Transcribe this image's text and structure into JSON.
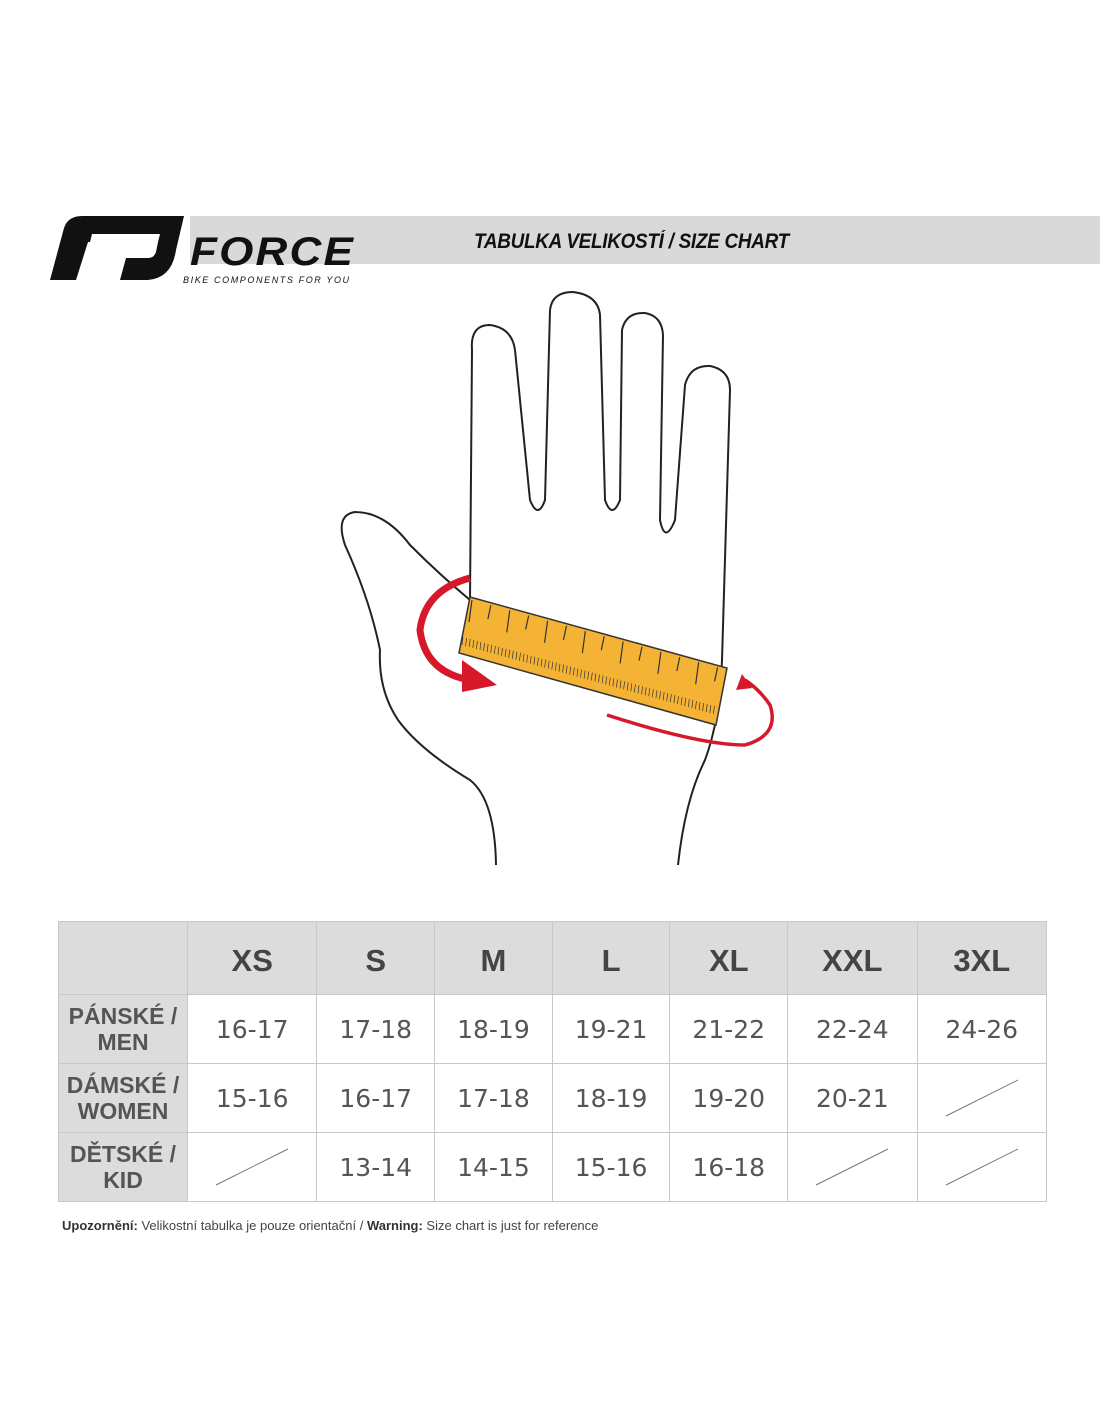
{
  "header": {
    "brand": "FORCE",
    "tagline": "BIKE COMPONENTS FOR YOU",
    "title": "TABULKA VELIKOSTÍ / SIZE CHART"
  },
  "colors": {
    "band": "#d9d9d9",
    "ruler": "#f5b335",
    "arrow": "#d7182a"
  },
  "table": {
    "columns": [
      "XS",
      "S",
      "M",
      "L",
      "XL",
      "XXL",
      "3XL"
    ],
    "rows": [
      {
        "label": "PÁNSKÉ / MEN",
        "values": [
          "16-17",
          "17-18",
          "18-19",
          "19-21",
          "21-22",
          "22-24",
          "24-26"
        ]
      },
      {
        "label": "DÁMSKÉ / WOMEN",
        "values": [
          "15-16",
          "16-17",
          "17-18",
          "18-19",
          "19-20",
          "20-21",
          null
        ]
      },
      {
        "label": "DĚTSKÉ / KID",
        "values": [
          null,
          "13-14",
          "14-15",
          "15-16",
          "16-18",
          null,
          null
        ]
      }
    ]
  },
  "footer": {
    "warning_cz_label": "Upozornění:",
    "warning_cz": "Velikostní tabulka je pouze orientační /",
    "warning_en_label": "Warning:",
    "warning_en": "Size chart is just for reference"
  }
}
